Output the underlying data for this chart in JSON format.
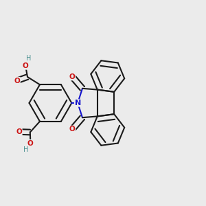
{
  "bg": "#ebebeb",
  "bc": "#1a1a1a",
  "nc": "#1414cc",
  "oc": "#cc1414",
  "hc": "#4a9090",
  "lw": 1.5,
  "dbo": 0.012,
  "fs": 7.5,
  "figsize": [
    3.0,
    3.0
  ],
  "dpi": 100,
  "xlim": [
    0.0,
    1.0
  ],
  "ylim": [
    0.05,
    0.95
  ]
}
